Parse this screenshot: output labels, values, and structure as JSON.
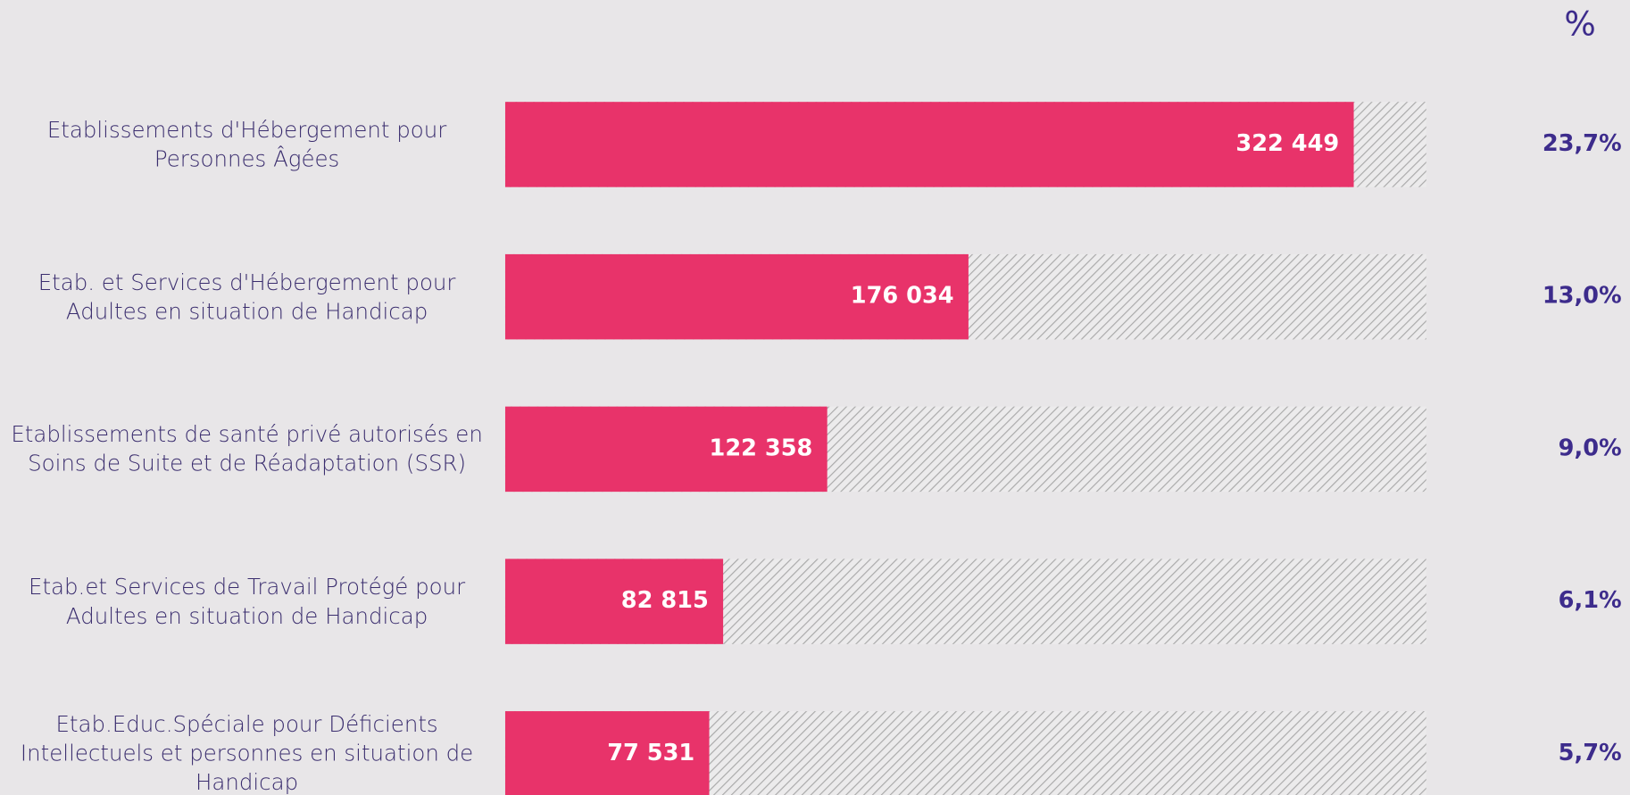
{
  "chart_data": {
    "type": "bar",
    "orientation": "horizontal",
    "categories": [
      "Etablissements d'Hébergement pour Personnes Âgées",
      "Etab. et Services d'Hébergement pour Adultes en situation de Handicap",
      "Etablissements de santé privé autorisés en Soins de Suite et de Réadaptation (SSR)",
      "Etab.et Services de Travail Protégé pour Adultes en situation de Handicap",
      "Etab.Educ.Spéciale pour Déficients Intellectuels et personnes en situation de Handicap"
    ],
    "values": [
      322449,
      176034,
      122358,
      82815,
      77531
    ],
    "value_labels": [
      "322 449",
      "176 034",
      "122 358",
      "82 815",
      "77 531"
    ],
    "color": "#e8336a",
    "xlim": [
      0,
      350000
    ],
    "percent_header": "%",
    "percents": [
      23.7,
      13.0,
      9.0,
      6.1,
      5.7
    ],
    "percent_labels": [
      "23,7%",
      "13,0%",
      "9,0%",
      "6,1%",
      "5,7%"
    ],
    "percent_color": "#3d2c8c"
  }
}
